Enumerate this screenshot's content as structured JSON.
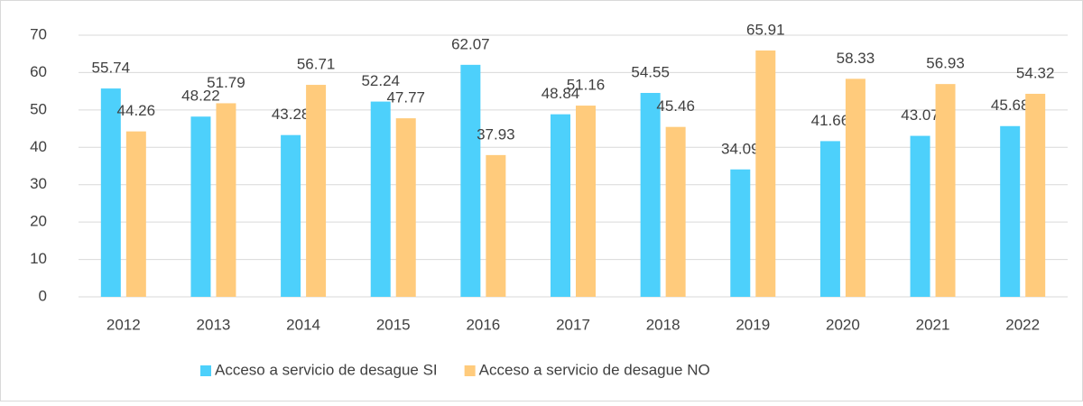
{
  "chart_data": {
    "type": "bar",
    "categories": [
      "2012",
      "2013",
      "2014",
      "2015",
      "2016",
      "2017",
      "2018",
      "2019",
      "2020",
      "2021",
      "2022"
    ],
    "series": [
      {
        "name": "Acceso a servicio de desague SI",
        "color": "#4dd0fb",
        "values": [
          55.74,
          48.22,
          43.28,
          52.24,
          62.07,
          48.84,
          54.55,
          34.09,
          41.66,
          43.07,
          45.68
        ]
      },
      {
        "name": "Acceso a servicio de desague NO",
        "color": "#ffcb7c",
        "values": [
          44.26,
          51.79,
          56.71,
          47.77,
          37.93,
          51.16,
          45.46,
          65.91,
          58.33,
          56.93,
          54.32
        ]
      }
    ],
    "ylim": [
      0,
      70
    ],
    "yticks": [
      0,
      10,
      20,
      30,
      40,
      50,
      60,
      70
    ],
    "grid": true,
    "legend": "bottom"
  }
}
